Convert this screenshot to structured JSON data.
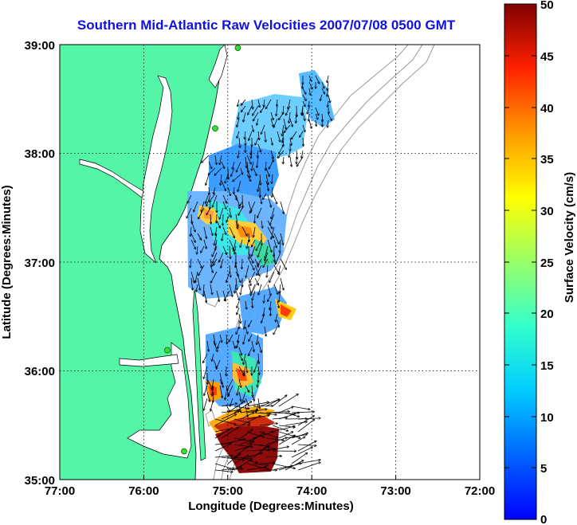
{
  "title": "Southern Mid-Atlantic Raw Velocities 2007/07/08 0500 GMT",
  "x_axis": {
    "label": "Longitude (Degrees:Minutes)",
    "ticks": [
      "77:00",
      "76:00",
      "75:00",
      "74:00",
      "73:00",
      "72:00"
    ]
  },
  "y_axis": {
    "label": "Latitude (Degrees:Minutes)",
    "ticks": [
      "39:00",
      "38:00",
      "37:00",
      "36:00",
      "35:00"
    ]
  },
  "colorbar": {
    "label": "Surface Velocity (cm/s)",
    "ticks": [
      "50",
      "45",
      "40",
      "35",
      "30",
      "25",
      "20",
      "15",
      "10",
      "5",
      "0"
    ],
    "range": [
      0,
      50
    ],
    "colormap": "jet"
  },
  "chart_data": {
    "type": "heatmap",
    "title": "Southern Mid-Atlantic Raw Velocities 2007/07/08 0500 GMT",
    "xlabel": "Longitude (Degrees:Minutes)",
    "ylabel": "Latitude (Degrees:Minutes)",
    "xlim": [
      -77.0,
      -72.0
    ],
    "ylim": [
      35.0,
      39.0
    ],
    "grid": true,
    "color_scale_label": "Surface Velocity (cm/s)",
    "color_scale_range": [
      0,
      50
    ],
    "land_color": "#55f5a8",
    "radar_sites": [
      {
        "lon": -74.88,
        "lat": 38.97
      },
      {
        "lon": -75.15,
        "lat": 38.23
      },
      {
        "lon": -75.72,
        "lat": 36.19
      },
      {
        "lon": -75.52,
        "lat": 35.26
      }
    ],
    "notable_speeds": [
      {
        "lon": -74.7,
        "lat": 35.35,
        "speed": 50
      },
      {
        "lon": -75.3,
        "lat": 37.5,
        "speed": 32
      },
      {
        "lon": -74.95,
        "lat": 37.3,
        "speed": 30
      },
      {
        "lon": -74.3,
        "lat": 36.55,
        "speed": 42
      },
      {
        "lon": -74.85,
        "lat": 36.0,
        "speed": 38
      },
      {
        "lon": -75.2,
        "lat": 35.9,
        "speed": 36
      }
    ]
  }
}
